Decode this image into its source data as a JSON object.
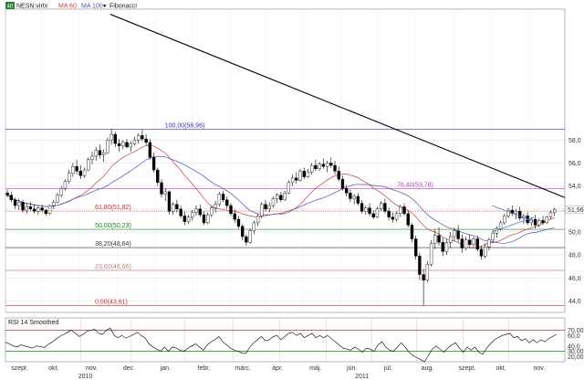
{
  "header": {
    "badge": "40",
    "symbol": "NESN:virtx",
    "ma60": "MA 60",
    "ma100": "MA 100",
    "fib": "Fibonacci"
  },
  "colors": {
    "ma60": "#c84040",
    "ma100": "#5050b0",
    "trend": "#000000",
    "candle": "#000000",
    "rsi": "#000000",
    "last": "#c03030"
  },
  "chart_data": [
    {
      "type": "candlestick",
      "title": "",
      "ylim": [
        43.0,
        69.4
      ],
      "y_ticks": [
        44.0,
        46.0,
        48.0,
        50.0,
        52.0,
        54.0,
        56.0,
        58.0
      ],
      "y_tick_labels": [
        "44,0",
        "46,0",
        "48,0",
        "50,0",
        "52,0",
        "54,0",
        "56,0",
        "58,0"
      ],
      "last_price_label": "51,96",
      "last_price": 51.96,
      "fibonacci": [
        {
          "label": "100,00(58,96)",
          "value": 58.96,
          "color": "#3333aa"
        },
        {
          "label": "76,40(53,78)",
          "value": 53.78,
          "color": "#c040c0"
        },
        {
          "label": "61,80(51,82)",
          "value": 51.82,
          "color": "#c03030"
        },
        {
          "label": "50,00(50,23)",
          "value": 50.23,
          "color": "#208020"
        },
        {
          "label": "38,20(48,64)",
          "value": 48.64,
          "color": "#333333"
        },
        {
          "label": "23,60(46,66)",
          "value": 46.66,
          "color": "#c08080"
        },
        {
          "label": "0,00(43,61)",
          "value": 43.61,
          "color": "#c03030"
        }
      ],
      "trendline": {
        "from": {
          "x": 0.187,
          "y": 68.96
        },
        "to": {
          "x": 1.0,
          "y": 53.0
        }
      },
      "channel": [
        {
          "from": {
            "x": 0.87,
            "y": 52.3
          },
          "to": {
            "x": 0.945,
            "y": 50.9
          }
        },
        {
          "from": {
            "x": 0.87,
            "y": 50.0
          },
          "to": {
            "x": 0.945,
            "y": 51.3
          }
        }
      ],
      "candles": [
        [
          53.4,
          53.7,
          53.0,
          53.2
        ],
        [
          53.2,
          53.5,
          52.6,
          52.8
        ],
        [
          52.8,
          53.0,
          52.0,
          52.3
        ],
        [
          52.3,
          52.9,
          51.9,
          52.6
        ],
        [
          52.6,
          52.8,
          51.7,
          51.9
        ],
        [
          51.9,
          52.5,
          51.6,
          52.2
        ],
        [
          52.2,
          52.6,
          51.8,
          52.0
        ],
        [
          52.0,
          52.4,
          51.6,
          51.8
        ],
        [
          51.8,
          52.3,
          51.5,
          52.1
        ],
        [
          52.1,
          52.4,
          51.7,
          51.9
        ],
        [
          51.9,
          52.0,
          51.4,
          51.6
        ],
        [
          51.6,
          52.4,
          51.5,
          52.3
        ],
        [
          52.3,
          52.8,
          52.0,
          52.6
        ],
        [
          52.6,
          53.4,
          52.5,
          53.2
        ],
        [
          53.2,
          54.0,
          53.0,
          53.8
        ],
        [
          53.8,
          54.6,
          53.6,
          54.4
        ],
        [
          54.4,
          55.4,
          54.2,
          55.1
        ],
        [
          55.1,
          56.0,
          54.8,
          55.7
        ],
        [
          55.7,
          56.3,
          55.0,
          55.3
        ],
        [
          55.3,
          55.8,
          54.6,
          54.9
        ],
        [
          54.9,
          55.6,
          54.7,
          55.4
        ],
        [
          55.4,
          56.5,
          55.3,
          56.3
        ],
        [
          56.3,
          57.0,
          55.9,
          56.6
        ],
        [
          56.6,
          57.4,
          56.2,
          57.1
        ],
        [
          57.1,
          57.6,
          56.4,
          56.7
        ],
        [
          56.7,
          57.2,
          56.1,
          56.9
        ],
        [
          56.9,
          58.2,
          56.8,
          58.0
        ],
        [
          58.0,
          58.96,
          57.6,
          58.5
        ],
        [
          58.5,
          58.7,
          57.4,
          57.7
        ],
        [
          57.7,
          58.1,
          57.0,
          57.5
        ],
        [
          57.5,
          58.0,
          57.2,
          57.8
        ],
        [
          57.8,
          58.1,
          57.3,
          57.4
        ],
        [
          57.4,
          57.9,
          57.0,
          57.7
        ],
        [
          57.7,
          58.3,
          57.5,
          58.0
        ],
        [
          58.0,
          58.6,
          57.7,
          58.4
        ],
        [
          58.4,
          58.9,
          57.9,
          58.1
        ],
        [
          58.1,
          58.5,
          57.5,
          57.8
        ],
        [
          57.8,
          58.1,
          56.3,
          56.5
        ],
        [
          56.5,
          56.9,
          55.2,
          55.4
        ],
        [
          55.4,
          55.6,
          54.0,
          54.3
        ],
        [
          54.3,
          54.6,
          53.0,
          53.3
        ],
        [
          53.3,
          53.8,
          52.7,
          53.5
        ],
        [
          53.5,
          53.6,
          51.5,
          51.8
        ],
        [
          51.8,
          52.6,
          51.5,
          52.4
        ],
        [
          52.4,
          52.8,
          51.7,
          52.0
        ],
        [
          52.0,
          52.3,
          51.2,
          51.4
        ],
        [
          51.4,
          51.8,
          50.6,
          50.9
        ],
        [
          50.9,
          51.5,
          50.7,
          51.3
        ],
        [
          51.3,
          51.9,
          51.0,
          51.7
        ],
        [
          51.7,
          52.3,
          51.4,
          52.0
        ],
        [
          52.0,
          52.4,
          51.3,
          51.5
        ],
        [
          51.5,
          51.8,
          50.6,
          50.8
        ],
        [
          50.8,
          51.7,
          50.7,
          51.5
        ],
        [
          51.5,
          52.3,
          51.3,
          52.1
        ],
        [
          52.1,
          52.7,
          51.7,
          52.4
        ],
        [
          52.4,
          53.5,
          52.2,
          53.3
        ],
        [
          53.3,
          53.6,
          52.6,
          52.8
        ],
        [
          52.8,
          53.1,
          52.0,
          52.3
        ],
        [
          52.3,
          52.5,
          51.4,
          51.6
        ],
        [
          51.6,
          52.0,
          50.8,
          51.1
        ],
        [
          51.1,
          51.4,
          50.3,
          50.5
        ],
        [
          50.5,
          50.7,
          49.3,
          49.6
        ],
        [
          49.6,
          49.8,
          48.8,
          49.1
        ],
        [
          49.1,
          50.3,
          49.0,
          50.1
        ],
        [
          50.1,
          51.0,
          49.8,
          50.8
        ],
        [
          50.8,
          51.6,
          50.5,
          51.4
        ],
        [
          51.4,
          52.6,
          51.2,
          52.4
        ],
        [
          52.4,
          52.8,
          51.8,
          52.0
        ],
        [
          52.0,
          52.6,
          51.7,
          52.3
        ],
        [
          52.3,
          53.1,
          52.1,
          52.9
        ],
        [
          52.9,
          53.4,
          52.5,
          53.2
        ],
        [
          53.2,
          53.5,
          52.6,
          52.8
        ],
        [
          52.8,
          53.6,
          52.7,
          53.4
        ],
        [
          53.4,
          54.5,
          53.3,
          54.3
        ],
        [
          54.3,
          55.0,
          54.0,
          54.7
        ],
        [
          54.7,
          55.2,
          54.2,
          54.5
        ],
        [
          54.5,
          55.5,
          54.4,
          55.3
        ],
        [
          55.3,
          55.6,
          54.6,
          54.8
        ],
        [
          54.8,
          55.5,
          54.7,
          55.2
        ],
        [
          55.2,
          56.0,
          55.0,
          55.8
        ],
        [
          55.8,
          56.3,
          55.3,
          55.5
        ],
        [
          55.5,
          56.1,
          55.3,
          55.9
        ],
        [
          55.9,
          56.4,
          55.5,
          55.7
        ],
        [
          55.7,
          56.2,
          55.2,
          56.0
        ],
        [
          56.0,
          56.5,
          55.6,
          55.8
        ],
        [
          55.8,
          56.2,
          55.0,
          55.3
        ],
        [
          55.3,
          55.7,
          54.4,
          54.6
        ],
        [
          54.6,
          54.9,
          53.6,
          53.8
        ],
        [
          53.8,
          54.1,
          53.1,
          53.4
        ],
        [
          53.4,
          53.7,
          52.6,
          52.9
        ],
        [
          52.9,
          53.3,
          52.4,
          53.1
        ],
        [
          53.1,
          53.4,
          52.3,
          52.5
        ],
        [
          52.5,
          52.8,
          51.6,
          51.8
        ],
        [
          51.8,
          52.3,
          51.5,
          52.1
        ],
        [
          52.1,
          52.5,
          51.4,
          51.6
        ],
        [
          51.6,
          51.9,
          51.1,
          51.3
        ],
        [
          51.3,
          52.2,
          51.2,
          52.0
        ],
        [
          52.0,
          52.7,
          51.8,
          52.5
        ],
        [
          52.5,
          52.9,
          51.6,
          51.8
        ],
        [
          51.8,
          52.1,
          51.0,
          51.3
        ],
        [
          51.3,
          51.7,
          50.8,
          51.1
        ],
        [
          51.1,
          51.8,
          50.9,
          51.6
        ],
        [
          51.6,
          52.4,
          51.3,
          52.2
        ],
        [
          52.2,
          52.5,
          51.4,
          51.6
        ],
        [
          51.6,
          51.9,
          50.4,
          50.6
        ],
        [
          50.6,
          50.8,
          49.1,
          49.4
        ],
        [
          49.4,
          49.7,
          47.6,
          47.9
        ],
        [
          47.9,
          48.2,
          45.8,
          46.3
        ],
        [
          46.3,
          46.8,
          43.61,
          45.8
        ],
        [
          45.8,
          47.5,
          45.6,
          47.2
        ],
        [
          47.2,
          49.3,
          47.0,
          49.0
        ],
        [
          49.0,
          50.2,
          48.5,
          49.7
        ],
        [
          49.7,
          50.4,
          48.8,
          49.1
        ],
        [
          49.1,
          49.5,
          47.9,
          48.3
        ],
        [
          48.3,
          49.4,
          48.0,
          49.1
        ],
        [
          49.1,
          50.0,
          48.6,
          49.6
        ],
        [
          49.6,
          50.4,
          49.2,
          50.1
        ],
        [
          50.1,
          50.6,
          49.1,
          49.4
        ],
        [
          49.4,
          49.8,
          48.2,
          48.6
        ],
        [
          48.6,
          49.6,
          48.4,
          49.3
        ],
        [
          49.3,
          49.8,
          48.6,
          48.9
        ],
        [
          48.9,
          49.6,
          48.7,
          49.4
        ],
        [
          49.4,
          49.7,
          48.3,
          48.5
        ],
        [
          48.5,
          48.8,
          47.6,
          47.9
        ],
        [
          47.9,
          49.0,
          47.7,
          48.7
        ],
        [
          48.7,
          49.5,
          48.4,
          49.3
        ],
        [
          49.3,
          50.2,
          49.0,
          49.9
        ],
        [
          49.9,
          50.5,
          49.5,
          50.3
        ],
        [
          50.3,
          51.0,
          50.1,
          50.8
        ],
        [
          50.8,
          51.6,
          50.6,
          51.4
        ],
        [
          51.4,
          52.1,
          51.2,
          51.9
        ],
        [
          51.9,
          52.3,
          51.4,
          51.6
        ],
        [
          51.6,
          52.0,
          51.1,
          51.8
        ],
        [
          51.8,
          52.2,
          51.0,
          51.2
        ],
        [
          51.2,
          51.6,
          50.7,
          51.4
        ],
        [
          51.4,
          51.7,
          50.6,
          50.8
        ],
        [
          50.8,
          51.3,
          50.5,
          51.1
        ],
        [
          51.1,
          51.5,
          50.3,
          50.6
        ],
        [
          50.6,
          51.2,
          50.4,
          51.0
        ],
        [
          51.0,
          51.4,
          50.6,
          50.8
        ],
        [
          50.8,
          51.4,
          50.7,
          51.3
        ],
        [
          51.3,
          51.9,
          51.1,
          51.7
        ],
        [
          51.7,
          52.1,
          51.4,
          51.96
        ]
      ]
    },
    {
      "type": "line",
      "title": "RSI 14 Smoothed",
      "ylim": [
        10,
        90
      ],
      "y_ticks": [
        20.0,
        30.0,
        40.0,
        60.0,
        70.0
      ],
      "y_tick_labels": [
        "20,00",
        "30,00",
        "40,0",
        "60,0",
        "70,00"
      ],
      "y_tick_colors": [
        "#333333",
        "#c03030",
        "#333333",
        "#333333",
        "#c03030"
      ],
      "ref_lines": [
        {
          "value": 70,
          "color": "#c03030"
        },
        {
          "value": 30,
          "color": "#208020"
        }
      ],
      "values": [
        47,
        44,
        40,
        38,
        42,
        40,
        38,
        36,
        40,
        39,
        37,
        43,
        47,
        53,
        58,
        62,
        66,
        70,
        64,
        58,
        62,
        68,
        70,
        72,
        64,
        62,
        70,
        74,
        60,
        56,
        60,
        55,
        58,
        62,
        66,
        60,
        55,
        44,
        38,
        34,
        30,
        38,
        30,
        38,
        36,
        32,
        30,
        36,
        40,
        44,
        38,
        32,
        42,
        48,
        52,
        58,
        48,
        42,
        36,
        32,
        30,
        26,
        26,
        38,
        46,
        52,
        58,
        50,
        52,
        58,
        60,
        52,
        58,
        64,
        66,
        60,
        64,
        56,
        60,
        64,
        56,
        60,
        56,
        60,
        54,
        48,
        42,
        36,
        34,
        32,
        38,
        34,
        28,
        36,
        34,
        30,
        42,
        48,
        38,
        32,
        30,
        38,
        46,
        38,
        28,
        22,
        18,
        14,
        10,
        22,
        34,
        40,
        34,
        28,
        36,
        42,
        46,
        36,
        28,
        38,
        32,
        38,
        28,
        24,
        36,
        44,
        52,
        56,
        60,
        62,
        64,
        56,
        58,
        50,
        54,
        46,
        52,
        46,
        52,
        48,
        54,
        58,
        62
      ],
      "tick_lines_x": [
        0.135,
        0.225,
        0.32,
        0.407,
        0.49,
        0.573,
        0.655,
        0.735,
        0.818,
        0.9
      ]
    }
  ],
  "x_axis": {
    "months": [
      "szept",
      "okt.",
      "nov.",
      "dec.",
      "jan.",
      "febr.",
      "márc.",
      "ápr.",
      "máj.",
      "jún.",
      "júl.",
      "aug.",
      "szept.",
      "okt.",
      "nov."
    ],
    "years": [
      "2010",
      "2011"
    ]
  }
}
